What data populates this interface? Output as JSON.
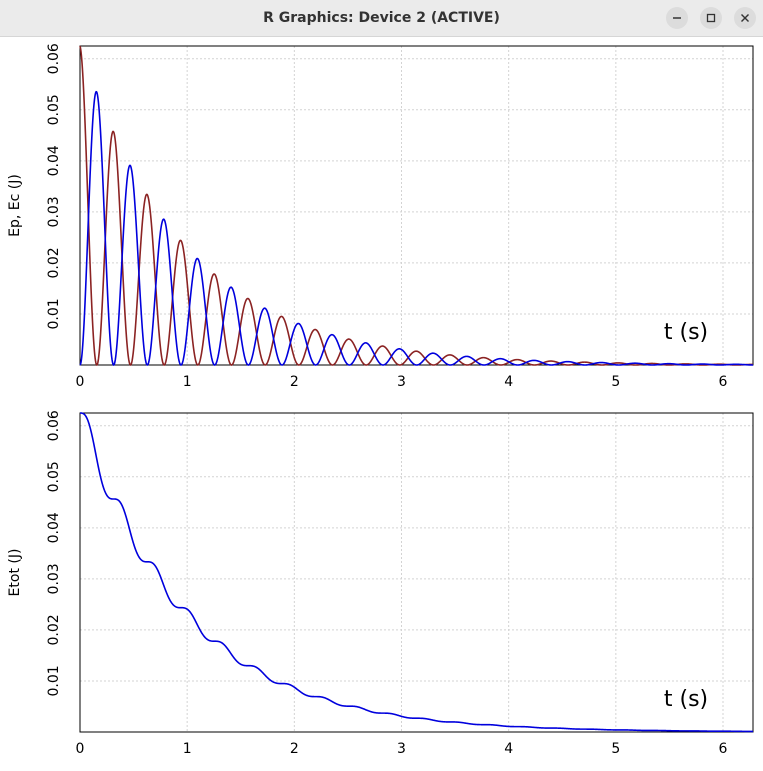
{
  "window": {
    "title": "R Graphics: Device 2 (ACTIVE)",
    "buttons": {
      "minimize": "minimize-icon",
      "maximize": "maximize-icon",
      "close": "close-icon"
    }
  },
  "chart_data": [
    {
      "type": "line",
      "ylabel": "Ep, Ec  (J)",
      "annotation": "t (s)",
      "xlim": [
        0,
        6.28
      ],
      "ylim": [
        0,
        0.0625
      ],
      "x_ticks": [
        "0",
        "1",
        "2",
        "3",
        "4",
        "5",
        "6"
      ],
      "y_ticks": [
        "0.01",
        "0.02",
        "0.03",
        "0.04",
        "0.05",
        "0.06"
      ],
      "grid": true,
      "model": {
        "E0": 0.0625,
        "damping": 0.5,
        "omega": 10,
        "t_end": 6.28
      },
      "series": [
        {
          "key": "Ep",
          "color": "#8b2323",
          "values_desc": "E0*exp(-2*b*t)*cos^2(w*t)"
        },
        {
          "key": "Ec",
          "color": "#0000dd",
          "values_desc": "E0*exp(-2*b*t)*sin^2(w*t)"
        }
      ]
    },
    {
      "type": "line",
      "ylabel": "Etot (J)",
      "annotation": "t (s)",
      "xlim": [
        0,
        6.28
      ],
      "ylim": [
        0,
        0.0625
      ],
      "x_ticks": [
        "0",
        "1",
        "2",
        "3",
        "4",
        "5",
        "6"
      ],
      "y_ticks": [
        "0.01",
        "0.02",
        "0.03",
        "0.04",
        "0.05",
        "0.06"
      ],
      "grid": true,
      "series": [
        {
          "key": "Etot",
          "color": "#0000dd"
        }
      ]
    }
  ]
}
